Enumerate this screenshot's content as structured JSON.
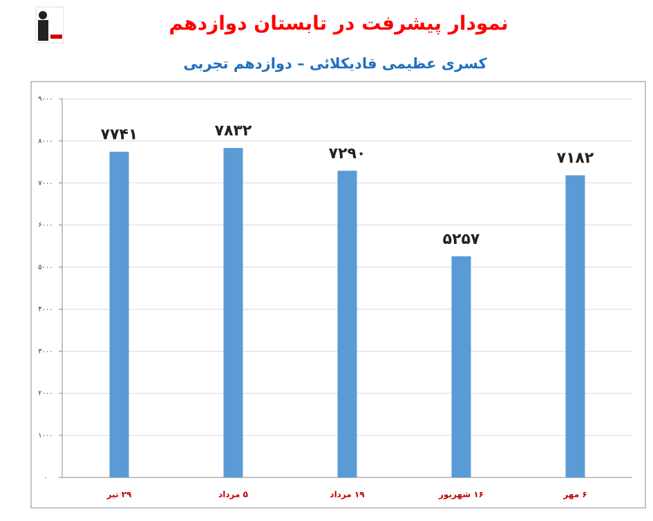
{
  "chart_data": {
    "type": "bar",
    "title": "نمودار پیشرفت در تابستان دوازدهم",
    "subtitle": "کسری عظیمی قادیکلائی – دوازدهم تجربی",
    "categories": [
      "۲۹ تیر",
      "۵ مرداد",
      "۱۹ مرداد",
      "۱۶ شهریور",
      "۶ مهر"
    ],
    "values": [
      7741,
      7832,
      7290,
      5257,
      7182
    ],
    "value_labels": [
      "۷۷۴۱",
      "۷۸۳۲",
      "۷۲۹۰",
      "۵۲۵۷",
      "۷۱۸۲"
    ],
    "color": "#5b9bd5",
    "ylim": [
      0,
      9000
    ],
    "yticks": [
      {
        "value": 0,
        "label": "۰"
      },
      {
        "value": 1000,
        "label": "۱۰۰۰"
      },
      {
        "value": 2000,
        "label": "۲۰۰۰"
      },
      {
        "value": 3000,
        "label": "۳۰۰۰"
      },
      {
        "value": 4000,
        "label": "۴۰۰۰"
      },
      {
        "value": 5000,
        "label": "۵۰۰۰"
      },
      {
        "value": 6000,
        "label": "۶۰۰۰"
      },
      {
        "value": 7000,
        "label": "۷۰۰۰"
      },
      {
        "value": 8000,
        "label": "۸۰۰۰"
      },
      {
        "value": 9000,
        "label": "۹۰۰۰"
      }
    ],
    "grid": true
  }
}
